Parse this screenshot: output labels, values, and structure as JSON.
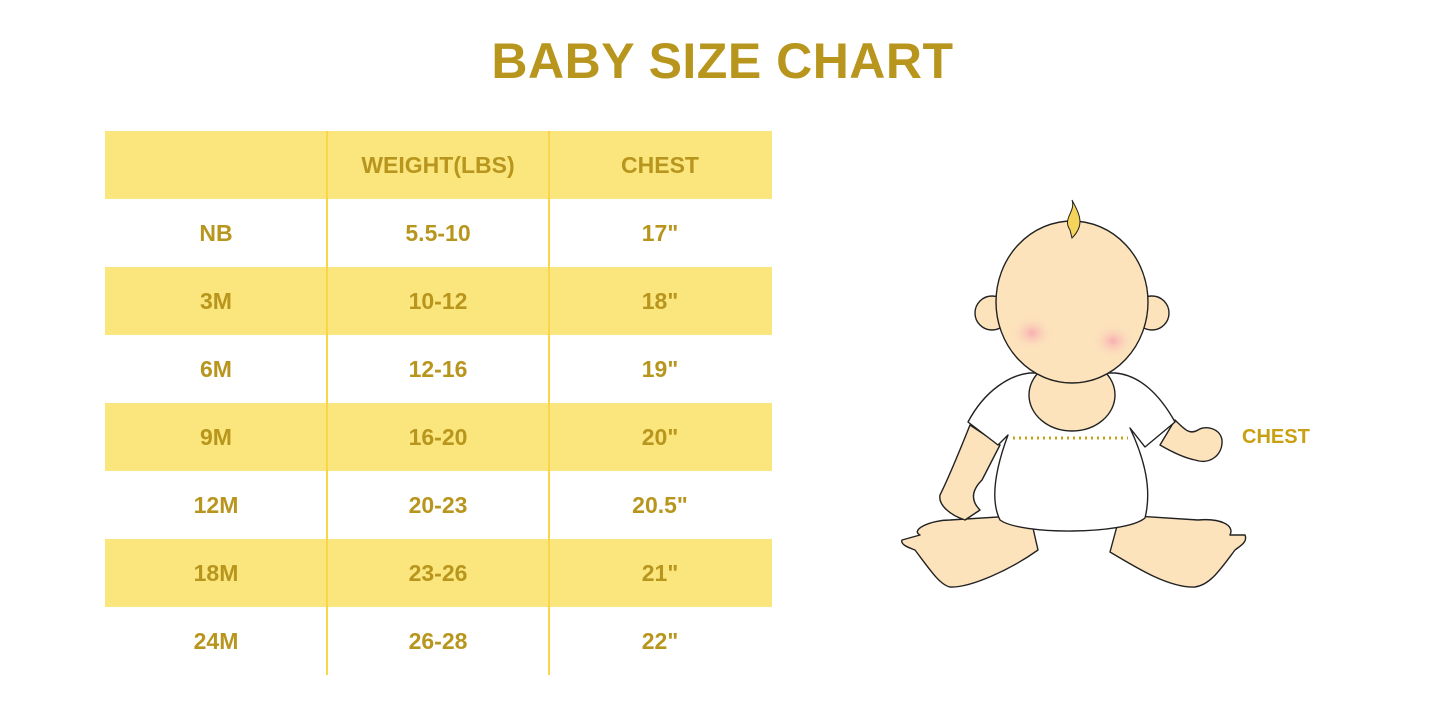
{
  "title": "BABY SIZE CHART",
  "table": {
    "headers": [
      "",
      "WEIGHT(LBS)",
      "CHEST"
    ],
    "rows": [
      [
        "NB",
        "5.5-10",
        "17\""
      ],
      [
        "3M",
        "10-12",
        "18\""
      ],
      [
        "6M",
        "12-16",
        "19\""
      ],
      [
        "9M",
        "16-20",
        "20\""
      ],
      [
        "12M",
        "20-23",
        "20.5\""
      ],
      [
        "18M",
        "23-26",
        "21\""
      ],
      [
        "24M",
        "26-28",
        "22\""
      ]
    ]
  },
  "illustration": {
    "chest_label": "CHEST"
  },
  "colors": {
    "text": "#B8961E",
    "row_highlight": "#FBE57D",
    "skin": "#FCE3BC",
    "chest_line": "#C9A012"
  }
}
